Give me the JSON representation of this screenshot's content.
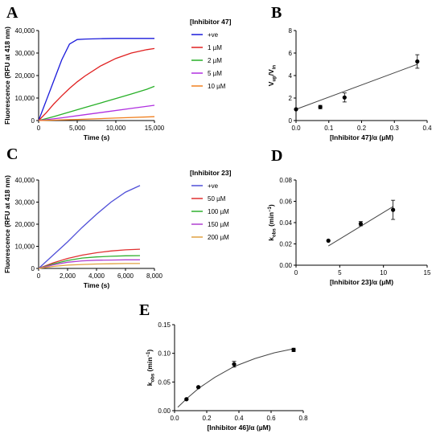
{
  "chart_data": [
    {
      "panel": "A",
      "type": "line",
      "xlabel": "Time (s)",
      "ylabel": "Fluorescence (RFU at 418 nm)",
      "xlim": [
        0,
        15000
      ],
      "ylim": [
        0,
        40000
      ],
      "xticks": [
        0,
        5000,
        10000,
        15000
      ],
      "xtick_labels": [
        "0",
        "5,000",
        "10,000",
        "15,000"
      ],
      "yticks": [
        0,
        10000,
        20000,
        30000,
        40000
      ],
      "ytick_labels": [
        "0",
        "10,000",
        "20,000",
        "30,000",
        "40,000"
      ],
      "legend_title": "[Inhibitor 47]",
      "legend_position": "right",
      "series": [
        {
          "name": "+ve",
          "color": "#1a1adb",
          "x": [
            0,
            1000,
            2000,
            3000,
            4000,
            5000,
            6000,
            8000,
            10000,
            12000,
            14000,
            15000
          ],
          "y": [
            0,
            9000,
            18000,
            27000,
            34000,
            36000,
            36200,
            36400,
            36500,
            36500,
            36500,
            36500
          ]
        },
        {
          "name": "1 µM",
          "color": "#e02020",
          "x": [
            0,
            1000,
            2000,
            3000,
            4000,
            5000,
            6000,
            8000,
            10000,
            12000,
            14000,
            15000
          ],
          "y": [
            0,
            3500,
            7500,
            11000,
            14300,
            17200,
            19800,
            24200,
            27600,
            30000,
            31500,
            32000
          ]
        },
        {
          "name": "2 µM",
          "color": "#28b028",
          "x": [
            0,
            2000,
            4000,
            6000,
            8000,
            10000,
            12000,
            14000,
            15000
          ],
          "y": [
            0,
            1800,
            3800,
            5800,
            7800,
            9800,
            11800,
            13900,
            15200
          ]
        },
        {
          "name": "5 µM",
          "color": "#b030e0",
          "x": [
            0,
            3000,
            6000,
            9000,
            12000,
            15000
          ],
          "y": [
            0,
            1200,
            2600,
            4000,
            5400,
            6800
          ]
        },
        {
          "name": "10 µM",
          "color": "#f08020",
          "x": [
            0,
            5000,
            10000,
            15000
          ],
          "y": [
            0,
            500,
            1100,
            1700
          ]
        }
      ]
    },
    {
      "panel": "B",
      "type": "scatter",
      "xlabel": "[Inhibitor 47]/α (µM)",
      "ylabel": "Vup/Vin",
      "ylabel_main": "V",
      "ylabel_sub1": "up",
      "ylabel_mid": "/V",
      "ylabel_sub2": "in",
      "xlim": [
        0,
        0.4
      ],
      "ylim": [
        0,
        8
      ],
      "xticks": [
        0,
        0.1,
        0.2,
        0.3,
        0.4
      ],
      "xtick_labels": [
        "0.0",
        "0.1",
        "0.2",
        "0.3",
        "0.4"
      ],
      "yticks": [
        0,
        2,
        4,
        6,
        8
      ],
      "ytick_labels": [
        "0",
        "2",
        "4",
        "6",
        "8"
      ],
      "points": {
        "x": [
          0.0,
          0.074,
          0.148,
          0.37
        ],
        "y": [
          1.0,
          1.2,
          2.05,
          5.25
        ],
        "err": [
          0.0,
          0.15,
          0.4,
          0.6
        ]
      },
      "fit": {
        "type": "linear",
        "x": [
          0.0,
          0.37
        ],
        "y": [
          1.0,
          5.0
        ]
      }
    },
    {
      "panel": "C",
      "type": "line",
      "xlabel": "Time (s)",
      "ylabel": "Fluorescence (RFU at 418 nm)",
      "xlim": [
        0,
        8000
      ],
      "ylim": [
        0,
        40000
      ],
      "xticks": [
        0,
        2000,
        4000,
        6000,
        8000
      ],
      "xtick_labels": [
        "0",
        "2,000",
        "4,000",
        "6,000",
        "8,000"
      ],
      "yticks": [
        0,
        10000,
        20000,
        30000,
        40000
      ],
      "ytick_labels": [
        "0",
        "10,000",
        "20,000",
        "30,000",
        "40,000"
      ],
      "legend_title": "[Inhibitor 23]",
      "legend_position": "right",
      "series": [
        {
          "name": "+ve",
          "color": "#5050d8",
          "x": [
            0,
            1000,
            2000,
            3000,
            4000,
            5000,
            6000,
            7000
          ],
          "y": [
            0,
            6000,
            12000,
            18500,
            24500,
            30000,
            34500,
            37500
          ]
        },
        {
          "name": "50 µM",
          "color": "#e03030",
          "x": [
            0,
            1000,
            2000,
            3000,
            4000,
            5000,
            6000,
            7000
          ],
          "y": [
            0,
            2500,
            4500,
            6000,
            7100,
            7900,
            8400,
            8700
          ]
        },
        {
          "name": "100 µM",
          "color": "#30b030",
          "x": [
            0,
            1000,
            2000,
            3000,
            4000,
            5000,
            6000,
            7000
          ],
          "y": [
            0,
            2000,
            3600,
            4700,
            5200,
            5500,
            5700,
            5800
          ]
        },
        {
          "name": "150 µM",
          "color": "#b040d0",
          "x": [
            0,
            1000,
            2000,
            3000,
            4000,
            5000,
            6000,
            7000
          ],
          "y": [
            0,
            1600,
            2800,
            3400,
            3700,
            3800,
            3900,
            3900
          ]
        },
        {
          "name": "200 µM",
          "color": "#e0a040",
          "x": [
            0,
            1000,
            2000,
            3000,
            4000,
            5000,
            6000,
            7000
          ],
          "y": [
            0,
            900,
            1500,
            1800,
            2000,
            2100,
            2200,
            2200
          ]
        }
      ]
    },
    {
      "panel": "D",
      "type": "scatter",
      "xlabel": "[Inhibitor 23]/α (µM)",
      "ylabel": "kobs (min⁻¹)",
      "ylabel_main": "k",
      "ylabel_sub1": "obs",
      "ylabel_mid": " (min",
      "ylabel_sup": "−1",
      "ylabel_end": ")",
      "xlim": [
        0,
        15
      ],
      "ylim": [
        0,
        0.08
      ],
      "xticks": [
        0,
        5,
        10,
        15
      ],
      "xtick_labels": [
        "0",
        "5",
        "10",
        "15"
      ],
      "yticks": [
        0,
        0.02,
        0.04,
        0.06,
        0.08
      ],
      "ytick_labels": [
        "0.00",
        "0.02",
        "0.04",
        "0.06",
        "0.08"
      ],
      "points": {
        "x": [
          3.7,
          7.4,
          11.1
        ],
        "y": [
          0.023,
          0.039,
          0.052
        ],
        "err": [
          0.0,
          0.002,
          0.009
        ]
      },
      "fit": {
        "type": "linear",
        "x": [
          3.7,
          11.1
        ],
        "y": [
          0.018,
          0.055
        ]
      }
    },
    {
      "panel": "E",
      "type": "scatter",
      "xlabel": "[Inhibitor 46]/α (µM)",
      "ylabel": "kobs (min⁻¹)",
      "ylabel_main": "k",
      "ylabel_sub1": "obs",
      "ylabel_mid": " (min",
      "ylabel_sup": "−1",
      "ylabel_end": ")",
      "xlim": [
        0,
        0.8
      ],
      "ylim": [
        0,
        0.15
      ],
      "xticks": [
        0,
        0.2,
        0.4,
        0.6,
        0.8
      ],
      "xtick_labels": [
        "0.0",
        "0.2",
        "0.4",
        "0.6",
        "0.8"
      ],
      "yticks": [
        0,
        0.05,
        0.1,
        0.15
      ],
      "ytick_labels": [
        "0.00",
        "0.05",
        "0.10",
        "0.15"
      ],
      "points": {
        "x": [
          0.074,
          0.148,
          0.37,
          0.74
        ],
        "y": [
          0.02,
          0.041,
          0.081,
          0.106
        ],
        "err": [
          0.001,
          0.001,
          0.005,
          0.003
        ]
      },
      "fit": {
        "type": "hyperbolic",
        "x": [
          0.02,
          0.08,
          0.15,
          0.25,
          0.37,
          0.5,
          0.62,
          0.74
        ],
        "y": [
          0.006,
          0.022,
          0.039,
          0.058,
          0.077,
          0.091,
          0.101,
          0.108
        ]
      }
    }
  ]
}
